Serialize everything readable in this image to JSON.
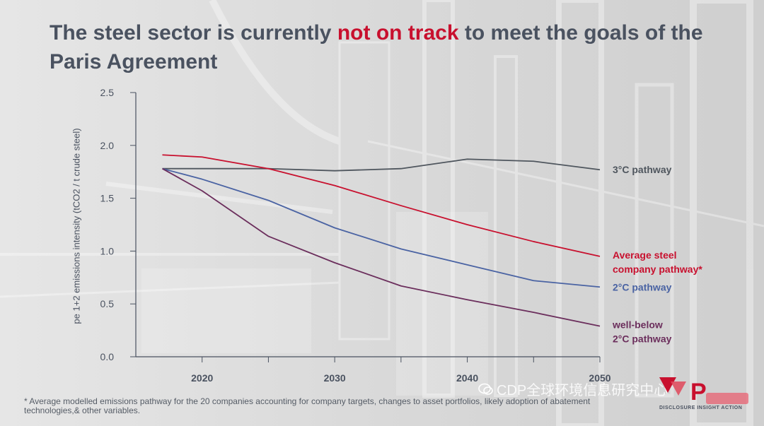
{
  "title": {
    "prefix": "The steel sector is currently ",
    "highlight": "not on track",
    "suffix": " to meet the goals of the Paris Agreement"
  },
  "footnote": "* Average modelled emissions pathway for the 20 companies accounting for company targets, changes to asset portfolios, likely adoption of abatement technologies,& other variables.",
  "watermark": "CDP全球环境信息研究中心",
  "logo": {
    "tagline": "DISCLOSURE INSIGHT ACTION"
  },
  "colors": {
    "title": "#4a5260",
    "highlight": "#c8102e",
    "three_c": "#4f565e",
    "average": "#c8102e",
    "two_c": "#4a63a3",
    "well_below": "#6b2e5c"
  },
  "chart_data": {
    "type": "line",
    "ylabel": "pe 1+2 emissions intensity (tCO2 / t crude steel)",
    "xlabel": "",
    "xlim": [
      2015,
      2050
    ],
    "ylim": [
      0,
      2.5
    ],
    "x_ticks": [
      "2020",
      "2030",
      "2040",
      "2050"
    ],
    "y_ticks": [
      "0.0",
      "0.5",
      "1.0",
      "1.5",
      "2.0",
      "2.5"
    ],
    "grid": false,
    "legend": "inline labels at right end of each line",
    "series": [
      {
        "name": "3°C pathway",
        "color_key": "three_c",
        "x": [
          2017,
          2025,
          2030,
          2035,
          2040,
          2045,
          2050
        ],
        "y": [
          1.78,
          1.78,
          1.76,
          1.78,
          1.87,
          1.85,
          1.77
        ]
      },
      {
        "name": "Average steel company pathway*",
        "label_lines": [
          "Average steel",
          "company pathway*"
        ],
        "color_key": "average",
        "x": [
          2017,
          2020,
          2025,
          2030,
          2035,
          2040,
          2045,
          2050
        ],
        "y": [
          1.91,
          1.89,
          1.78,
          1.62,
          1.43,
          1.25,
          1.09,
          0.95
        ]
      },
      {
        "name": "2°C pathway",
        "color_key": "two_c",
        "x": [
          2017,
          2020,
          2025,
          2030,
          2035,
          2040,
          2045,
          2050
        ],
        "y": [
          1.78,
          1.68,
          1.48,
          1.22,
          1.02,
          0.87,
          0.72,
          0.66
        ]
      },
      {
        "name": "well-below 2°C pathway",
        "label_lines": [
          "well-below",
          "2°C pathway"
        ],
        "color_key": "well_below",
        "x": [
          2017,
          2020,
          2025,
          2030,
          2035,
          2040,
          2045,
          2050
        ],
        "y": [
          1.78,
          1.57,
          1.14,
          0.89,
          0.67,
          0.54,
          0.42,
          0.29
        ]
      }
    ]
  }
}
